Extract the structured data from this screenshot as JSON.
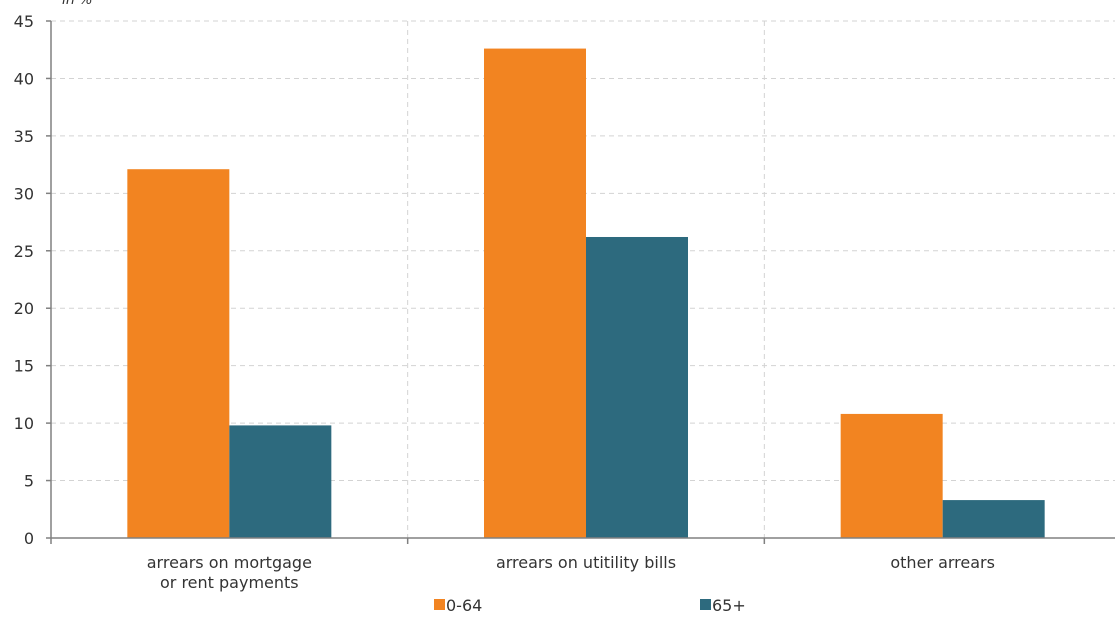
{
  "chart_data": {
    "type": "bar",
    "unit_label": "in %",
    "categories": [
      [
        "arrears on mortgage",
        "or rent payments"
      ],
      [
        "arrears on utitility bills"
      ],
      [
        "other arrears"
      ]
    ],
    "series": [
      {
        "name": "0-64",
        "color": "#F28421",
        "values": [
          32.1,
          42.6,
          10.8
        ]
      },
      {
        "name": "65+",
        "color": "#2D6A7E",
        "values": [
          9.8,
          26.2,
          3.3
        ]
      }
    ],
    "ylim": [
      0,
      45
    ],
    "yticks": [
      0,
      5,
      10,
      15,
      20,
      25,
      30,
      35,
      40,
      45
    ],
    "grid": true,
    "legend_position": "bottom"
  }
}
